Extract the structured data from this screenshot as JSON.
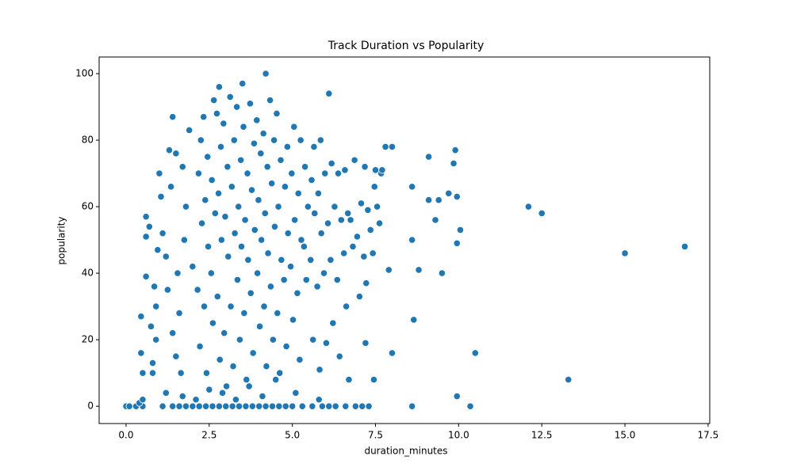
{
  "chart_data": {
    "type": "scatter",
    "title": "Track Duration vs Popularity",
    "xlabel": "duration_minutes",
    "ylabel": "popularity",
    "color": "#1f77b4",
    "xlim": [
      -0.81,
      17.55
    ],
    "ylim": [
      -5.2,
      105
    ],
    "xticks": [
      {
        "value": 0,
        "label": "0.0"
      },
      2.5,
      {
        "value": 5,
        "label": "5.0"
      },
      7.5,
      {
        "value": 10,
        "label": "10.0"
      },
      12.5,
      {
        "value": 15,
        "label": "15.0"
      },
      17.5
    ],
    "yticks": [
      0,
      20,
      40,
      60,
      80,
      100
    ],
    "x": [
      0,
      0.1,
      0.3,
      0.5,
      1.1,
      1.4,
      1.6,
      1.8,
      2.0,
      2.2,
      2.4,
      2.6,
      2.8,
      3.0,
      3.2,
      3.4,
      3.6,
      3.8,
      4.0,
      4.2,
      4.4,
      4.6,
      4.8,
      5.0,
      5.3,
      5.6,
      5.9,
      6.1,
      6.3,
      6.6,
      6.9,
      7.1,
      7.3,
      0.4,
      0.5,
      1.2,
      1.7,
      2.1,
      2.5,
      2.9,
      3.3,
      3.7,
      4.1,
      4.5,
      5.1,
      5.8,
      6.7,
      0.45,
      0.45,
      0.5,
      0.6,
      0.6,
      0.6,
      0.7,
      0.8,
      0.8,
      0.75,
      0.85,
      0.9,
      0.9,
      0.95,
      1.0,
      1.05,
      1.1,
      1.2,
      1.3,
      1.4,
      1.5,
      1.35,
      1.25,
      1.4,
      1.5,
      1.6,
      1.7,
      1.8,
      1.9,
      2.0,
      1.75,
      1.55,
      1.65,
      2.22,
      2.15,
      2.28,
      2.18,
      2.25,
      2.42,
      2.35,
      2.47,
      2.38,
      2.45,
      2.33,
      2.61,
      2.56,
      2.68,
      2.58,
      2.64,
      2.82,
      2.75,
      2.87,
      2.78,
      2.85,
      2.73,
      3.02,
      2.95,
      3.07,
      2.98,
      3.05,
      2.93,
      3.22,
      3.15,
      3.27,
      3.18,
      3.25,
      3.13,
      3.42,
      3.35,
      3.47,
      3.38,
      3.45,
      3.33,
      3.62,
      3.55,
      3.67,
      3.58,
      3.65,
      3.53,
      3.82,
      3.75,
      3.87,
      3.78,
      3.85,
      3.73,
      4.02,
      3.95,
      4.07,
      3.98,
      4.05,
      3.93,
      4.22,
      4.15,
      4.27,
      4.18,
      4.25,
      4.13,
      4.42,
      4.35,
      4.47,
      4.38,
      4.45,
      4.33,
      4.62,
      4.55,
      4.67,
      4.58,
      4.65,
      4.53,
      4.82,
      4.75,
      4.87,
      4.78,
      4.85,
      5.02,
      4.95,
      5.07,
      4.98,
      5.05,
      5.22,
      5.15,
      5.27,
      5.18,
      5.25,
      5.42,
      5.35,
      5.47,
      5.38,
      5.62,
      5.55,
      5.67,
      5.58,
      5.65,
      5.82,
      5.75,
      5.87,
      5.78,
      5.85,
      6.02,
      5.95,
      6.07,
      5.98,
      6.22,
      6.15,
      6.27,
      6.18,
      6.42,
      6.35,
      6.47,
      6.38,
      6.62,
      6.55,
      6.67,
      6.58,
      6.82,
      6.75,
      6.87,
      7.02,
      6.95,
      7.07,
      7.22,
      7.15,
      7.27,
      7.18,
      7.42,
      7.35,
      7.47,
      7.62,
      7.55,
      7.67,
      16.8,
      15.0,
      13.3,
      12.1,
      12.5,
      10.5,
      10.35,
      9.95,
      9.95,
      10.05,
      9.9,
      9.85,
      9.95,
      9.1,
      9.5,
      8.8,
      8.6,
      8.65,
      8.6,
      8.6,
      8.0,
      7.9,
      8.0,
      7.8,
      9.3,
      9.7,
      9.4,
      9.1,
      7.5,
      7.7,
      7.45,
      7.2,
      6.1,
      4.2,
      3.5,
      2.8
    ],
    "values": [
      0,
      0,
      0,
      0,
      0,
      0,
      0,
      0,
      0,
      0,
      0,
      0,
      0,
      0,
      0,
      0,
      0,
      0,
      0,
      0,
      0,
      0,
      0,
      0,
      0,
      0,
      0,
      0,
      0,
      0,
      0,
      0,
      0,
      1,
      2,
      4,
      3,
      2,
      5,
      4,
      2,
      6,
      3,
      8,
      4,
      2,
      8,
      27,
      16,
      10,
      39,
      57,
      51,
      54,
      10,
      13,
      24,
      36,
      20,
      30,
      47,
      70,
      63,
      52,
      45,
      77,
      87,
      76,
      66,
      35,
      22,
      15,
      28,
      72,
      60,
      83,
      42,
      50,
      40,
      10,
      18,
      35,
      55,
      70,
      80,
      10,
      30,
      48,
      62,
      75,
      87,
      25,
      40,
      58,
      68,
      92,
      14,
      33,
      50,
      64,
      78,
      88,
      6,
      22,
      45,
      57,
      72,
      85,
      12,
      30,
      52,
      66,
      80,
      93,
      20,
      38,
      48,
      60,
      74,
      90,
      8,
      28,
      44,
      56,
      70,
      84,
      16,
      34,
      53,
      65,
      79,
      91,
      24,
      40,
      50,
      62,
      76,
      86,
      12,
      30,
      46,
      58,
      72,
      82,
      20,
      36,
      54,
      67,
      80,
      92,
      10,
      28,
      44,
      60,
      74,
      88,
      18,
      38,
      52,
      66,
      78,
      26,
      42,
      56,
      70,
      84,
      14,
      34,
      50,
      64,
      80,
      38,
      48,
      60,
      72,
      20,
      44,
      58,
      68,
      78,
      11,
      36,
      52,
      64,
      80,
      19,
      40,
      55,
      70,
      25,
      44,
      60,
      73,
      15,
      38,
      56,
      70,
      30,
      46,
      58,
      71,
      48,
      56,
      74,
      33,
      51,
      61,
      37,
      45,
      59,
      72,
      46,
      53,
      66,
      55,
      60,
      70,
      48,
      46,
      8,
      60,
      58,
      16,
      0,
      3,
      49,
      53,
      77,
      73,
      63,
      75,
      40,
      41,
      50,
      26,
      0,
      66,
      16,
      41,
      78,
      78,
      56,
      64,
      62,
      62,
      71,
      71,
      8,
      19,
      94,
      100,
      97,
      96
    ]
  }
}
